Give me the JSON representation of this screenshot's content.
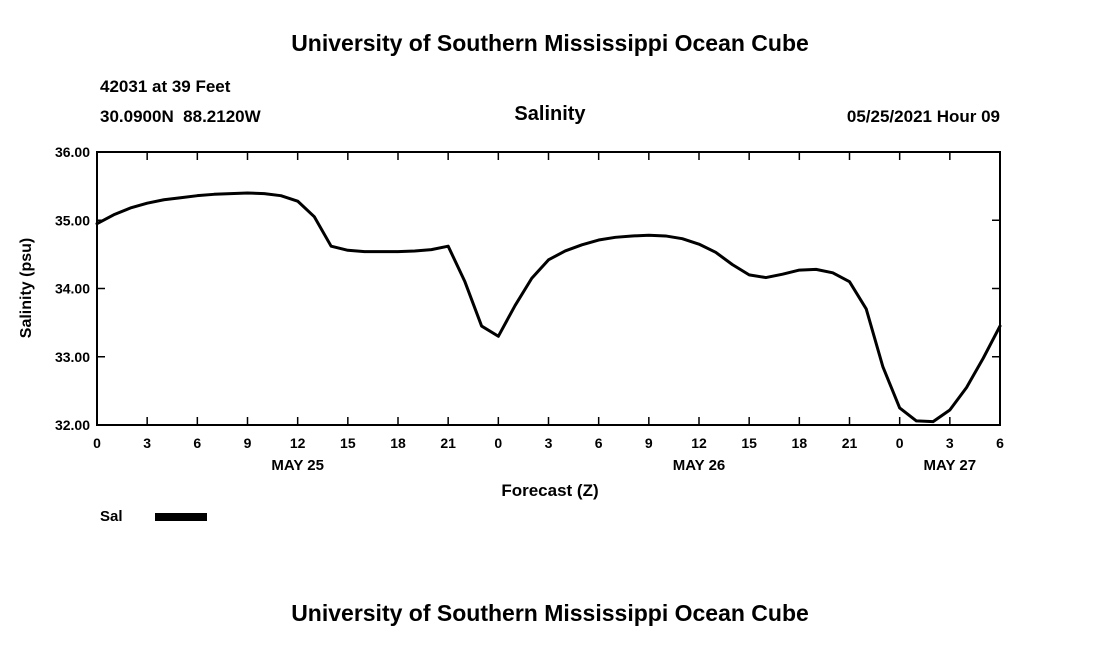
{
  "header": {
    "title": "University of Southern Mississippi Ocean Cube",
    "station": "42031 at 39 Feet",
    "coordinates": "30.0900N  88.2120W",
    "plot_title": "Salinity",
    "run_time": "05/25/2021 Hour 09"
  },
  "footer": {
    "title": "University of Southern Mississippi Ocean Cube"
  },
  "legend": {
    "label": "Sal",
    "line_color": "#000000"
  },
  "chart_data": {
    "type": "line",
    "title": "Salinity",
    "xlabel": "Forecast (Z)",
    "ylabel": "Salinity (psu)",
    "xlim": [
      0,
      54
    ],
    "ylim": [
      32.0,
      36.0
    ],
    "grid": false,
    "legend_position": "bottom-left",
    "frame_color": "#000000",
    "text_color": "#000000",
    "y_ticks": [
      32.0,
      33.0,
      34.0,
      35.0,
      36.0
    ],
    "y_tick_labels": [
      "32.00",
      "33.00",
      "34.00",
      "35.00",
      "36.00"
    ],
    "x_ticks": [
      0,
      3,
      6,
      9,
      12,
      15,
      18,
      21,
      24,
      27,
      30,
      33,
      36,
      39,
      42,
      45,
      48,
      51,
      54
    ],
    "x_tick_labels": [
      "0",
      "3",
      "6",
      "9",
      "12",
      "15",
      "18",
      "21",
      "0",
      "3",
      "6",
      "9",
      "12",
      "15",
      "18",
      "21",
      "0",
      "3",
      "6"
    ],
    "date_labels": [
      {
        "label": "MAY 25",
        "hour": 12
      },
      {
        "label": "MAY 26",
        "hour": 36
      },
      {
        "label": "MAY 27",
        "hour": 51
      }
    ],
    "series": [
      {
        "name": "Sal",
        "color": "#000000",
        "x": [
          0,
          1,
          2,
          3,
          4,
          5,
          6,
          7,
          8,
          9,
          10,
          11,
          12,
          13,
          14,
          15,
          16,
          17,
          18,
          19,
          20,
          21,
          22,
          23,
          24,
          25,
          26,
          27,
          28,
          29,
          30,
          31,
          32,
          33,
          34,
          35,
          36,
          37,
          38,
          39,
          40,
          41,
          42,
          43,
          44,
          45,
          46,
          47,
          48,
          49,
          50,
          51,
          52,
          53,
          54
        ],
        "values": [
          34.95,
          35.08,
          35.18,
          35.25,
          35.3,
          35.33,
          35.36,
          35.38,
          35.39,
          35.4,
          35.39,
          35.36,
          35.28,
          35.05,
          34.62,
          34.56,
          34.54,
          34.54,
          34.54,
          34.55,
          34.57,
          34.62,
          34.1,
          33.45,
          33.3,
          33.75,
          34.15,
          34.42,
          34.55,
          34.64,
          34.71,
          34.75,
          34.77,
          34.78,
          34.77,
          34.73,
          34.65,
          34.53,
          34.35,
          34.2,
          34.16,
          34.21,
          34.27,
          34.28,
          34.23,
          34.1,
          33.7,
          32.85,
          32.25,
          32.06,
          32.05,
          32.22,
          32.55,
          32.98,
          33.45
        ]
      }
    ]
  }
}
